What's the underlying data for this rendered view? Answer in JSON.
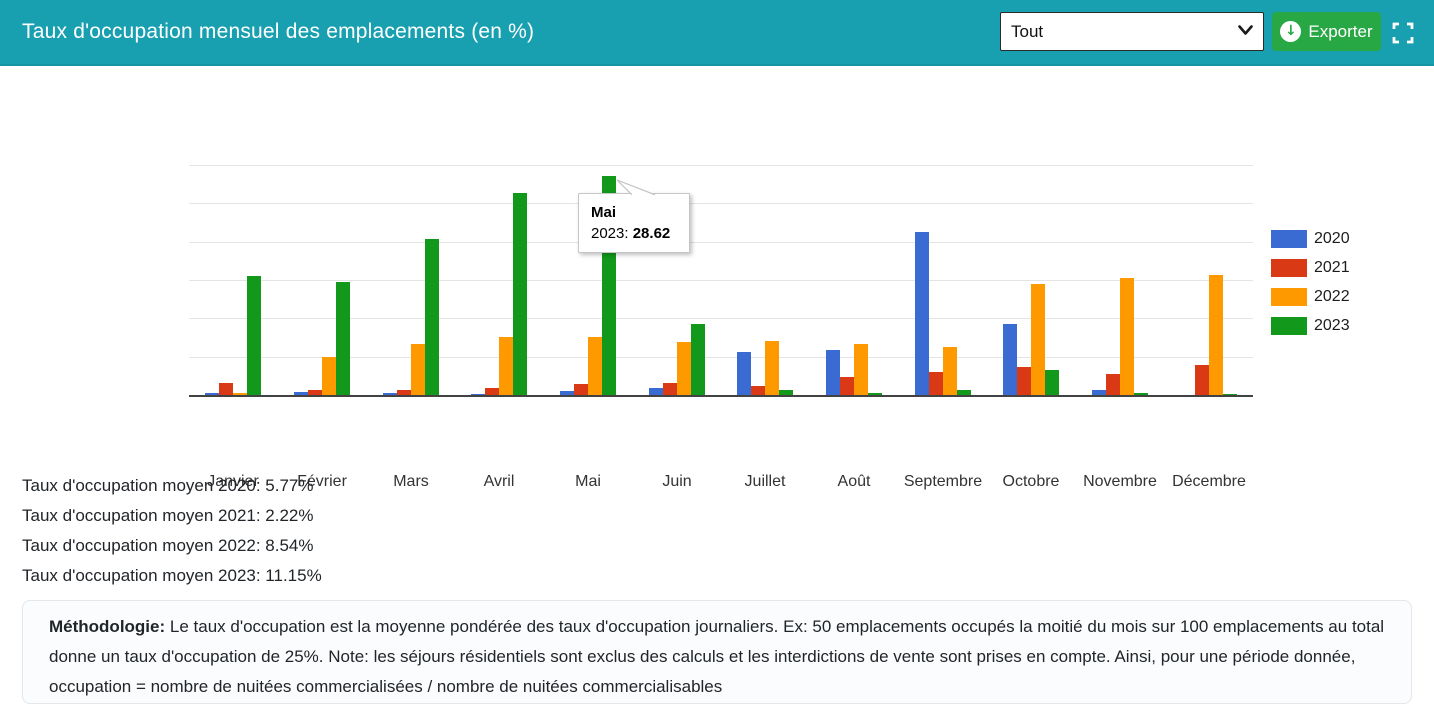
{
  "header": {
    "title": "Taux d'occupation mensuel des emplacements (en %)",
    "filter": {
      "value": "Tout"
    },
    "export_label": "Exporter",
    "colors": {
      "header_bg": "#18a0b0",
      "export_green": "#28a745"
    }
  },
  "chart_data": {
    "type": "bar",
    "title": "Taux d'occupation mensuel des emplacements (en %)",
    "categories": [
      "Janvier",
      "Février",
      "Mars",
      "Avril",
      "Mai",
      "Juin",
      "Juillet",
      "Août",
      "Septembre",
      "Octobre",
      "Novembre",
      "Décembre"
    ],
    "series": [
      {
        "name": "2020",
        "color": "#3a6bd2",
        "values": [
          0.2,
          0.4,
          0.2,
          0.1,
          0.5,
          0.9,
          5.6,
          5.9,
          21.3,
          9.3,
          0.6,
          0
        ]
      },
      {
        "name": "2021",
        "color": "#d93a15",
        "values": [
          1.5,
          0.6,
          0.7,
          0.9,
          1.4,
          1.5,
          1.2,
          2.3,
          3.0,
          3.7,
          2.7,
          3.9
        ]
      },
      {
        "name": "2022",
        "color": "#ff9900",
        "values": [
          0.2,
          4.9,
          6.7,
          7.6,
          7.5,
          6.9,
          7.0,
          6.7,
          6.3,
          14.5,
          15.3,
          15.7
        ]
      },
      {
        "name": "2023",
        "color": "#12991c",
        "values": [
          15.5,
          14.8,
          20.3,
          26.4,
          28.62,
          9.3,
          0.6,
          0.3,
          0.6,
          3.3,
          0.2,
          0.1
        ]
      }
    ],
    "ylim": [
      0,
      30
    ],
    "gridline_step": 5,
    "y_axis_labels_visible": false,
    "grid": true,
    "legend_position": "right"
  },
  "tooltip": {
    "category": "Mai",
    "series_label": "2023:",
    "value": "28.62"
  },
  "stats": {
    "lines": [
      "Taux d'occupation moyen 2020: 5.77%",
      "Taux d'occupation moyen 2021: 2.22%",
      "Taux d'occupation moyen 2022: 8.54%",
      "Taux d'occupation moyen 2023: 11.15%"
    ]
  },
  "methodology": {
    "label": "Méthodologie:",
    "text": " Le taux d'occupation est la moyenne pondérée des taux d'occupation journaliers. Ex: 50 emplacements occupés la moitié du mois sur 100 emplacements au total donne un taux d'occupation de 25%. Note: les séjours résidentiels sont exclus des calculs et les interdictions de vente sont prises en compte. Ainsi, pour une période donnée, occupation = nombre de nuitées commercialisées / nombre de nuitées commercialisables"
  }
}
